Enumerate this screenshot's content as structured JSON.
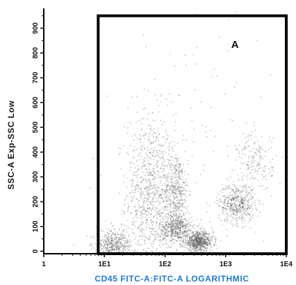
{
  "chart_data": {
    "type": "scatter",
    "subtype": "flow-cytometry-density",
    "x_axis": {
      "label": "CD45 FITC-A:FITC-A LOGARITHMIC",
      "label_color": "#1a7ad9",
      "scale": "log",
      "range": [
        1,
        10000
      ],
      "ticks": [
        1,
        10,
        100,
        1000,
        10000
      ],
      "tick_labels": [
        "1",
        "1E1",
        "1E2",
        "1E3",
        "1E4"
      ]
    },
    "y_axis": {
      "label": "SSC-A Exp-SSC Low",
      "scale": "linear",
      "range": [
        -10,
        980
      ],
      "ticks": [
        0,
        100,
        200,
        300,
        400,
        500,
        600,
        700,
        800,
        900
      ],
      "tick_labels": [
        "0",
        "100",
        "200",
        "300",
        "400",
        "500",
        "600",
        "700",
        "800",
        "900"
      ]
    },
    "gate": {
      "label": "A",
      "shape": "rectangle",
      "x_range": [
        7.9,
        10000
      ],
      "y_range": [
        -10,
        950
      ]
    },
    "populations": [
      {
        "x_center": 55,
        "y_center": 230,
        "x_spread_decades": 0.2,
        "y_spread": 165,
        "relative_density": 1.0
      },
      {
        "x_center": 150,
        "y_center": 245,
        "x_spread_decades": 0.1,
        "y_spread": 80,
        "relative_density": 0.5
      },
      {
        "x_center": 1500,
        "y_center": 195,
        "x_spread_decades": 0.15,
        "y_spread": 40,
        "relative_density": 0.55
      },
      {
        "x_center": 150,
        "y_center": 95,
        "x_spread_decades": 0.14,
        "y_spread": 30,
        "relative_density": 0.55
      },
      {
        "x_center": 350,
        "y_center": 40,
        "x_spread_decades": 0.12,
        "y_spread": 20,
        "relative_density": 0.8
      },
      {
        "x_center": 14,
        "y_center": 20,
        "x_spread_decades": 0.15,
        "y_spread": 35,
        "relative_density": 0.6
      },
      {
        "x_center": 3000,
        "y_center": 360,
        "x_spread_decades": 0.15,
        "y_spread": 60,
        "relative_density": 0.2
      },
      {
        "x_center": 400,
        "y_center": 400,
        "x_spread_decades": 0.8,
        "y_spread": 300,
        "relative_density": 0.15
      }
    ],
    "point_color": "#5a5a5a",
    "gate_color": "#000000",
    "grid": false
  }
}
